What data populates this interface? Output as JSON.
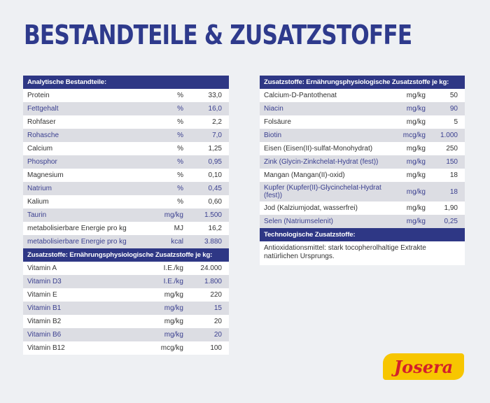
{
  "title": "BESTANDTEILE & ZUSATZSTOFFE",
  "left": [
    {
      "header": "Analytische Bestandteile:",
      "rows": [
        [
          "Protein",
          "%",
          "33,0"
        ],
        [
          "Fettgehalt",
          "%",
          "16,0"
        ],
        [
          "Rohfaser",
          "%",
          "2,2"
        ],
        [
          "Rohasche",
          "%",
          "7,0"
        ],
        [
          "Calcium",
          "%",
          "1,25"
        ],
        [
          "Phosphor",
          "%",
          "0,95"
        ],
        [
          "Magnesium",
          "%",
          "0,10"
        ],
        [
          "Natrium",
          "%",
          "0,45"
        ],
        [
          "Kalium",
          "%",
          "0,60"
        ],
        [
          "Taurin",
          "mg/kg",
          "1.500"
        ],
        [
          "metabolisierbare Energie pro kg",
          "MJ",
          "16,2"
        ],
        [
          "metabolisierbare Energie pro kg",
          "kcal",
          "3.880"
        ]
      ]
    },
    {
      "header": "Zusatzstoffe: Ernährungsphysiologische Zusatzstoffe je kg:",
      "rows": [
        [
          "Vitamin A",
          "I.E./kg",
          "24.000"
        ],
        [
          "Vitamin D3",
          "I.E./kg",
          "1.800"
        ],
        [
          "Vitamin E",
          "mg/kg",
          "220"
        ],
        [
          "Vitamin B1",
          "mg/kg",
          "15"
        ],
        [
          "Vitamin B2",
          "mg/kg",
          "20"
        ],
        [
          "Vitamin B6",
          "mg/kg",
          "20"
        ],
        [
          "Vitamin B12",
          "mcg/kg",
          "100"
        ]
      ]
    }
  ],
  "right": {
    "table": {
      "header": "Zusatzstoffe: Ernährungsphysiologische Zusatzstoffe je kg:",
      "rows": [
        [
          "Calcium-D-Pantothenat",
          "mg/kg",
          "50"
        ],
        [
          "Niacin",
          "mg/kg",
          "90"
        ],
        [
          "Folsäure",
          "mg/kg",
          "5"
        ],
        [
          "Biotin",
          "mcg/kg",
          "1.000"
        ],
        [
          "Eisen (Eisen(II)-sulfat-Monohydrat)",
          "mg/kg",
          "250"
        ],
        [
          "Zink (Glycin-Zinkchelat-Hydrat (fest))",
          "mg/kg",
          "150"
        ],
        [
          "Mangan (Mangan(II)-oxid)",
          "mg/kg",
          "18"
        ],
        [
          "Kupfer (Kupfer(II)-Glycinchelat-Hydrat (fest))",
          "mg/kg",
          "18"
        ],
        [
          "Jod (Kalziumjodat, wasserfrei)",
          "mg/kg",
          "1,90"
        ],
        [
          "Selen (Natriumselenit)",
          "mg/kg",
          "0,25"
        ]
      ]
    },
    "section": {
      "header": "Technologische Zusatzstoffe:",
      "text": "Antioxidationsmittel: stark tocopherolhaltige Extrakte natürlichen Ursprungs."
    }
  },
  "logo": "Josera"
}
